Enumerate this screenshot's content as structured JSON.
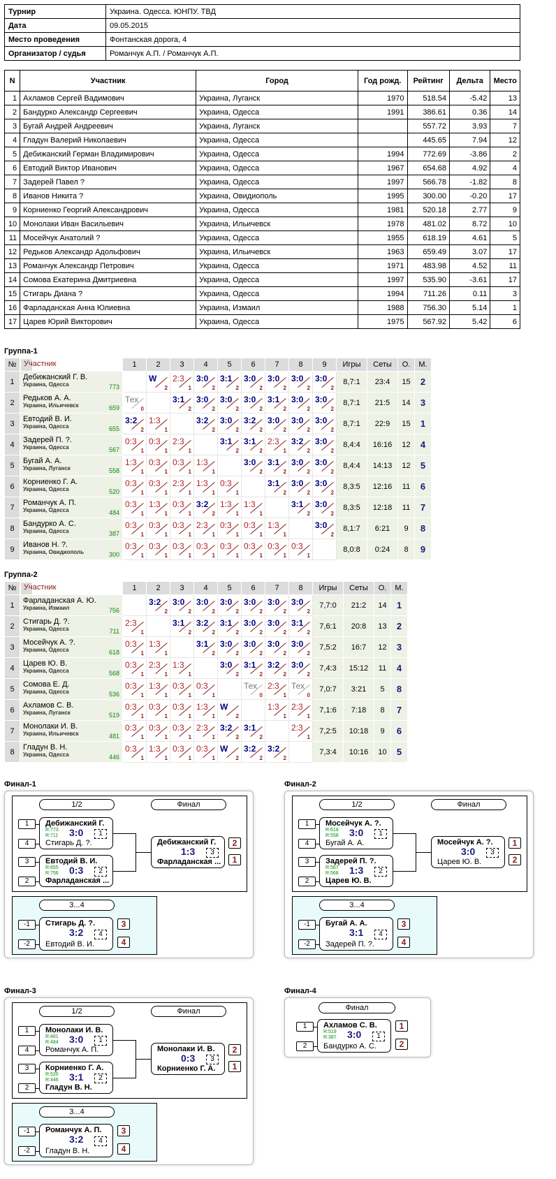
{
  "info": [
    [
      "Турнир",
      "Украина. Одесса. ЮНПУ. ТВД"
    ],
    [
      "Дата",
      "09.05.2015"
    ],
    [
      "Место проведения",
      "Фонтанская дорога, 4"
    ],
    [
      "Организатор / судья",
      "Романчук А.П. / Романчук А.П."
    ]
  ],
  "players_header": [
    "N",
    "Участник",
    "Город",
    "Год рожд.",
    "Рейтинг",
    "Дельта",
    "Место"
  ],
  "players": [
    [
      "1",
      "Ахламов Сергей Вадимович",
      "Украина, Луганск",
      "1970",
      "518.54",
      "-5.42",
      "13"
    ],
    [
      "2",
      "Бандурко Александр Сергеевич",
      "Украина, Одесса",
      "1991",
      "386.61",
      "0.36",
      "14"
    ],
    [
      "3",
      "Бугай Андрей Андреевич",
      "Украина, Луганск",
      "",
      "557.72",
      "3.93",
      "7"
    ],
    [
      "4",
      "Гладун Валерий Николаевич",
      "Украина, Одесса",
      "",
      "445.65",
      "7.94",
      "12"
    ],
    [
      "5",
      "Дебижанский Герман Владимирович",
      "Украина, Одесса",
      "1994",
      "772.69",
      "-3.86",
      "2"
    ],
    [
      "6",
      "Евтодий Виктор Иванович",
      "Украина, Одесса",
      "1967",
      "654.68",
      "4.92",
      "4"
    ],
    [
      "7",
      "Задерей Павел ?",
      "Украина, Одесса",
      "1997",
      "566.78",
      "-1.82",
      "8"
    ],
    [
      "8",
      "Иванов Никита ?",
      "Украина, Овидиополь",
      "1995",
      "300.00",
      "-0.20",
      "17"
    ],
    [
      "9",
      "Корниенко Георгий Александрович",
      "Украина, Одесса",
      "1981",
      "520.18",
      "2.77",
      "9"
    ],
    [
      "10",
      "Монолаки Иван Васильевич",
      "Украина, Ильичевск",
      "1978",
      "481.02",
      "8.72",
      "10"
    ],
    [
      "11",
      "Мосейчук Анатолий ?",
      "Украина, Одесса",
      "1955",
      "618.19",
      "4.61",
      "5"
    ],
    [
      "12",
      "Редьков Александр Адольфович",
      "Украина, Ильичевск",
      "1963",
      "659.49",
      "3.07",
      "17"
    ],
    [
      "13",
      "Романчук Александр Петрович",
      "Украина, Одесса",
      "1971",
      "483.98",
      "4.52",
      "11"
    ],
    [
      "14",
      "Сомова Екатерина Дмитриевна",
      "Украина, Одесса",
      "1997",
      "535.90",
      "-3.61",
      "17"
    ],
    [
      "15",
      "Стигарь Диана ?",
      "Украина, Одесса",
      "1994",
      "711.26",
      "0.11",
      "3"
    ],
    [
      "16",
      "Фарладанская Анна Юлиевна",
      "Украина, Измаил",
      "1988",
      "756.30",
      "5.14",
      "1"
    ],
    [
      "17",
      "Царев Юрий Викторович",
      "Украина, Одесса",
      "1975",
      "567.92",
      "5.42",
      "6"
    ]
  ],
  "group_header": {
    "num": "№",
    "participant": "Участник",
    "games": "Игры",
    "sets": "Сеты",
    "points": "О.",
    "place": "М."
  },
  "groups": [
    {
      "title": "Группа-1",
      "rows": [
        {
          "n": "1",
          "name": "Дебижанский Г. В.",
          "city": "Украина, Одесса",
          "rating": "773",
          "cells": [
            null,
            "W|2",
            "2:3|1",
            "3:0|2",
            "3:1|2",
            "3:0|2",
            "3:0|2",
            "3:0|2",
            "3:0|2"
          ],
          "games": "8,7:1",
          "sets": "23:4",
          "pts": "15",
          "place": "2"
        },
        {
          "n": "2",
          "name": "Редьков А. А.",
          "city": "Украина, Ильичевск",
          "rating": "659",
          "cells": [
            "Тех|0",
            null,
            "3:1|2",
            "3:0|2",
            "3:0|2",
            "3:0|2",
            "3:1|2",
            "3:0|2",
            "3:0|2"
          ],
          "games": "8,7:1",
          "sets": "21:5",
          "pts": "14",
          "place": "3"
        },
        {
          "n": "3",
          "name": "Евтодий В. И.",
          "city": "Украина, Одесса",
          "rating": "655",
          "cells": [
            "3:2|2",
            "1:3|1",
            null,
            "3:2|2",
            "3:0|2",
            "3:2|2",
            "3:0|2",
            "3:0|2",
            "3:0|2"
          ],
          "games": "8,7:1",
          "sets": "22:9",
          "pts": "15",
          "place": "1"
        },
        {
          "n": "4",
          "name": "Задерей П. ?.",
          "city": "Украина, Одесса",
          "rating": "567",
          "cells": [
            "0:3|1",
            "0:3|1",
            "2:3|1",
            null,
            "3:1|2",
            "3:1|2",
            "2:3|1",
            "3:2|2",
            "3:0|2"
          ],
          "games": "8,4:4",
          "sets": "16:16",
          "pts": "12",
          "place": "4"
        },
        {
          "n": "5",
          "name": "Бугай А. А.",
          "city": "Украина, Луганск",
          "rating": "558",
          "cells": [
            "1:3|1",
            "0:3|1",
            "0:3|1",
            "1:3|1",
            null,
            "3:0|2",
            "3:1|2",
            "3:0|2",
            "3:0|2"
          ],
          "games": "8,4:4",
          "sets": "14:13",
          "pts": "12",
          "place": "5"
        },
        {
          "n": "6",
          "name": "Корниенко Г. А.",
          "city": "Украина, Одесса",
          "rating": "520",
          "cells": [
            "0:3|1",
            "0:3|1",
            "2:3|1",
            "1:3|1",
            "0:3|1",
            null,
            "3:1|2",
            "3:0|2",
            "3:0|2"
          ],
          "games": "8,3:5",
          "sets": "12:16",
          "pts": "11",
          "place": "6"
        },
        {
          "n": "7",
          "name": "Романчук А. П.",
          "city": "Украина, Одесса",
          "rating": "484",
          "cells": [
            "0:3|1",
            "1:3|1",
            "0:3|1",
            "3:2|2",
            "1:3|1",
            "1:3|1",
            null,
            "3:1|2",
            "3:0|2"
          ],
          "games": "8,3:5",
          "sets": "12:18",
          "pts": "11",
          "place": "7"
        },
        {
          "n": "8",
          "name": "Бандурко А. С.",
          "city": "Украина, Одесса",
          "rating": "387",
          "cells": [
            "0:3|1",
            "0:3|1",
            "0:3|1",
            "2:3|1",
            "0:3|1",
            "0:3|1",
            "1:3|1",
            null,
            "3:0|2"
          ],
          "games": "8,1:7",
          "sets": "6:21",
          "pts": "9",
          "place": "8"
        },
        {
          "n": "9",
          "name": "Иванов Н. ?.",
          "city": "Украина, Овидиополь",
          "rating": "300",
          "cells": [
            "0:3|1",
            "0:3|1",
            "0:3|1",
            "0:3|1",
            "0:3|1",
            "0:3|1",
            "0:3|1",
            "0:3|1",
            null
          ],
          "games": "8,0:8",
          "sets": "0:24",
          "pts": "8",
          "place": "9"
        }
      ]
    },
    {
      "title": "Группа-2",
      "rows": [
        {
          "n": "1",
          "name": "Фарладанская А. Ю.",
          "city": "Украина, Измаил",
          "rating": "756",
          "cells": [
            null,
            "3:2|2",
            "3:0|2",
            "3:0|2",
            "3:0|2",
            "3:0|2",
            "3:0|2",
            "3:0|2"
          ],
          "games": "7,7:0",
          "sets": "21:2",
          "pts": "14",
          "place": "1"
        },
        {
          "n": "2",
          "name": "Стигарь Д. ?.",
          "city": "Украина, Одесса",
          "rating": "711",
          "cells": [
            "2:3|1",
            null,
            "3:1|2",
            "3:2|2",
            "3:1|2",
            "3:0|2",
            "3:0|2",
            "3:1|2"
          ],
          "games": "7,6:1",
          "sets": "20:8",
          "pts": "13",
          "place": "2"
        },
        {
          "n": "3",
          "name": "Мосейчук А. ?.",
          "city": "Украина, Одесса",
          "rating": "618",
          "cells": [
            "0:3|1",
            "1:3|1",
            null,
            "3:1|2",
            "3:0|2",
            "3:0|2",
            "3:0|2",
            "3:0|2"
          ],
          "games": "7,5:2",
          "sets": "16:7",
          "pts": "12",
          "place": "3"
        },
        {
          "n": "4",
          "name": "Царев Ю. В.",
          "city": "Украина, Одесса",
          "rating": "568",
          "cells": [
            "0:3|1",
            "2:3|1",
            "1:3|1",
            null,
            "3:0|2",
            "3:1|2",
            "3:2|2",
            "3:0|2"
          ],
          "games": "7,4:3",
          "sets": "15:12",
          "pts": "11",
          "place": "4"
        },
        {
          "n": "5",
          "name": "Сомова Е. Д.",
          "city": "Украина, Одесса",
          "rating": "536",
          "cells": [
            "0:3|1",
            "1:3|1",
            "0:3|1",
            "0:3|1",
            null,
            "Тех|0",
            "2:3|1",
            "Тех|0"
          ],
          "games": "7,0:7",
          "sets": "3:21",
          "pts": "5",
          "place": "8"
        },
        {
          "n": "6",
          "name": "Ахламов С. В.",
          "city": "Украина, Луганск",
          "rating": "519",
          "cells": [
            "0:3|1",
            "0:3|1",
            "0:3|1",
            "1:3|1",
            "W|2",
            null,
            "1:3|1",
            "2:3|1"
          ],
          "games": "7,1:6",
          "sets": "7:18",
          "pts": "8",
          "place": "7"
        },
        {
          "n": "7",
          "name": "Монолаки И. В.",
          "city": "Украина, Ильичевск",
          "rating": "481",
          "cells": [
            "0:3|1",
            "0:3|1",
            "0:3|1",
            "2:3|1",
            "3:2|2",
            "3:1|2",
            null,
            "2:3|1"
          ],
          "games": "7,2:5",
          "sets": "10:18",
          "pts": "9",
          "place": "6"
        },
        {
          "n": "8",
          "name": "Гладун В. Н.",
          "city": "Украина, Одесса",
          "rating": "446",
          "cells": [
            "0:3|1",
            "1:3|1",
            "0:3|1",
            "0:3|1",
            "W|2",
            "3:2|2",
            "3:2|2",
            null
          ],
          "games": "7,3:4",
          "sets": "10:16",
          "pts": "10",
          "place": "5"
        }
      ]
    }
  ],
  "finals": {
    "f1": {
      "title": "Финал-1",
      "semi_hdr": "1/2",
      "final_hdr": "Финал",
      "third_hdr": "3...4",
      "m1": {
        "s1": "1",
        "s2": "4",
        "p1": "Дебижанский Г.",
        "r1": "R:773",
        "r2": "R:711",
        "p2": "Стигарь Д. ?.",
        "res": "3:0",
        "num": "1"
      },
      "m2": {
        "s1": "3",
        "s2": "2",
        "p1": "Евтодий В. И.",
        "r1": "R:655",
        "r2": "R:756",
        "p2": "Фарладанская ...",
        "res": "0:3",
        "num": "2"
      },
      "fin": {
        "p1": "Дебижанский Г.",
        "p2": "Фарладанская ...",
        "res": "1:3",
        "num": "3",
        "pl1": "2",
        "pl2": "1"
      },
      "third": {
        "s1": "-1",
        "s2": "-2",
        "p1": "Стигарь Д. ?.",
        "p2": "Евтодий В. И.",
        "res": "3:2",
        "num": "4",
        "pl1": "3",
        "pl2": "4"
      }
    },
    "f2": {
      "title": "Финал-2",
      "semi_hdr": "1/2",
      "final_hdr": "Финал",
      "third_hdr": "3...4",
      "m1": {
        "s1": "1",
        "s2": "4",
        "p1": "Мосейчук А. ?.",
        "r1": "R:618",
        "r2": "R:558",
        "p2": "Бугай А. А.",
        "res": "3:0",
        "num": "1"
      },
      "m2": {
        "s1": "3",
        "s2": "2",
        "p1": "Задерей П. ?.",
        "r1": "R:567",
        "r2": "R:568",
        "p2": "Царев Ю. В.",
        "res": "1:3",
        "num": "2"
      },
      "fin": {
        "p1": "Мосейчук А. ?.",
        "p2": "Царев Ю. В.",
        "res": "3:0",
        "num": "3",
        "pl1": "1",
        "pl2": "2"
      },
      "third": {
        "s1": "-1",
        "s2": "-2",
        "p1": "Бугай А. А.",
        "p2": "Задерей П. ?.",
        "res": "3:1",
        "num": "4",
        "pl1": "3",
        "pl2": "4"
      }
    },
    "f3": {
      "title": "Финал-3",
      "semi_hdr": "1/2",
      "final_hdr": "Финал",
      "third_hdr": "3...4",
      "m1": {
        "s1": "1",
        "s2": "4",
        "p1": "Монолаки И. В.",
        "r1": "R:481",
        "r2": "R:484",
        "p2": "Романчук А. П.",
        "res": "3:0",
        "num": "1"
      },
      "m2": {
        "s1": "3",
        "s2": "2",
        "p1": "Корниенко Г. А.",
        "r1": "R:520",
        "r2": "R:446",
        "p2": "Гладун В. Н.",
        "res": "3:1",
        "num": "2"
      },
      "fin": {
        "p1": "Монолаки И. В.",
        "p2": "Корниенко Г. А.",
        "res": "0:3",
        "num": "3",
        "pl1": "2",
        "pl2": "1"
      },
      "third": {
        "s1": "-1",
        "s2": "-2",
        "p1": "Романчук А. П.",
        "p2": "Гладун В. Н.",
        "res": "3:2",
        "num": "4",
        "pl1": "3",
        "pl2": "4"
      }
    },
    "f4": {
      "title": "Финал-4",
      "final_hdr": "Финал",
      "m1": {
        "s1": "1",
        "s2": "2",
        "p1": "Ахламов С. В.",
        "r1": "R:519",
        "r2": "R:387",
        "p2": "Бандурко А. С.",
        "res": "3:0",
        "num": "1",
        "pl1": "1",
        "pl2": "2"
      }
    }
  }
}
